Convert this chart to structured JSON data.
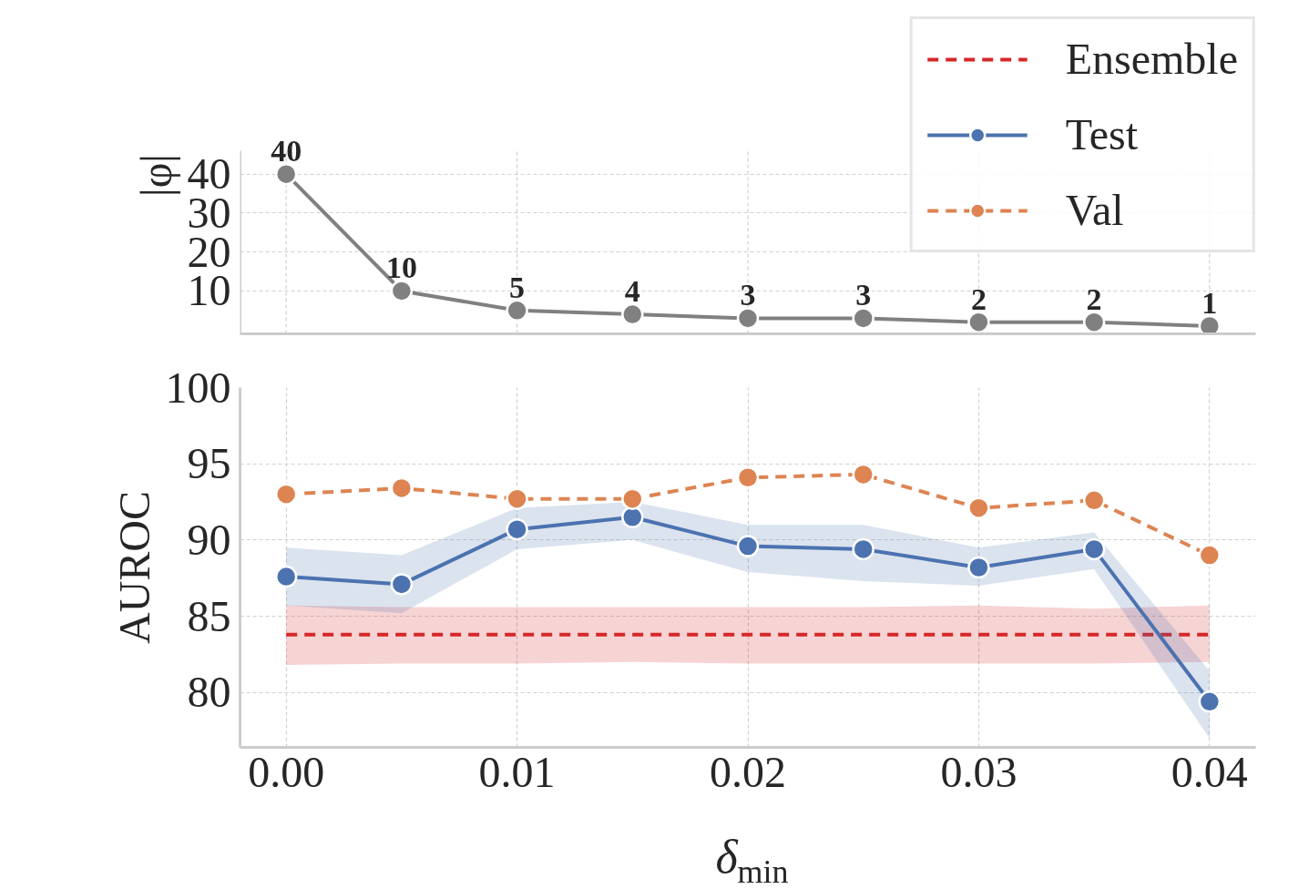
{
  "chart_data": [
    {
      "type": "line",
      "ylabel": "|φ|",
      "x": [
        0.0,
        0.005,
        0.01,
        0.015,
        0.02,
        0.025,
        0.03,
        0.035,
        0.04
      ],
      "xlim": [
        -0.002,
        0.042
      ],
      "xticks": [
        0.0,
        0.01,
        0.02,
        0.03,
        0.04
      ],
      "ylim": [
        -1,
        46
      ],
      "yticks": [
        10,
        20,
        30,
        40
      ],
      "tick_labels": "y",
      "grid": true,
      "marker": "circle",
      "line_style": "solid",
      "data_labels": true,
      "series": [
        {
          "color": "#808080",
          "values": [
            40,
            10,
            5,
            4,
            3,
            3,
            2,
            2,
            1
          ]
        }
      ]
    },
    {
      "type": "line",
      "xlabel": "δ$_{min}$",
      "ylabel": "AUROC",
      "x": [
        0.0,
        0.005,
        0.01,
        0.015,
        0.02,
        0.025,
        0.03,
        0.035,
        0.04
      ],
      "xlim": [
        -0.002,
        0.042
      ],
      "xticks": [
        {
          "value": 0.0,
          "label": "0.00"
        },
        {
          "value": 0.01,
          "label": "0.01"
        },
        {
          "value": 0.02,
          "label": "0.02"
        },
        {
          "value": 0.03,
          "label": "0.03"
        },
        {
          "value": 0.04,
          "label": "0.04"
        }
      ],
      "ylim": [
        76.4,
        100
      ],
      "yticks": [
        80,
        85,
        90,
        95,
        100
      ],
      "grid": true,
      "legend": "top right",
      "series": [
        {
          "name": "Ensemble",
          "color": "#d62728",
          "marker": "none",
          "line_style": "dashed",
          "values": [
            83.8,
            83.8,
            83.8,
            83.8,
            83.8,
            83.8,
            83.8,
            83.8,
            83.8
          ],
          "lower": [
            81.8,
            81.9,
            81.9,
            82.0,
            81.9,
            81.9,
            81.9,
            81.9,
            82.0
          ],
          "upper": [
            85.7,
            85.6,
            85.6,
            85.6,
            85.6,
            85.6,
            85.7,
            85.5,
            85.7
          ]
        },
        {
          "name": "Test",
          "color": "#4c72b0",
          "marker": "circle",
          "line_style": "solid",
          "values": [
            87.6,
            87.1,
            90.7,
            91.5,
            89.6,
            89.4,
            88.2,
            89.4,
            79.4
          ],
          "lower": [
            85.7,
            85.2,
            89.4,
            90.0,
            87.9,
            87.3,
            87.0,
            88.1,
            77.0
          ],
          "upper": [
            89.5,
            89.0,
            92.1,
            92.5,
            91.0,
            91.0,
            89.5,
            90.5,
            81.4
          ]
        },
        {
          "name": "Val",
          "color": "#dd8452",
          "marker": "circle",
          "line_style": "dashed",
          "values": [
            93.0,
            93.4,
            92.7,
            92.7,
            94.1,
            94.3,
            92.1,
            92.6,
            89.0
          ]
        }
      ]
    }
  ]
}
